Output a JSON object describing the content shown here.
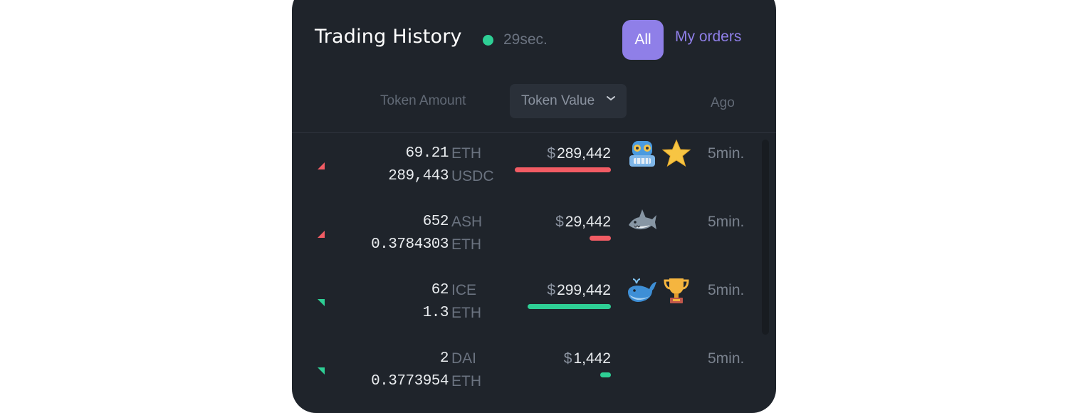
{
  "header": {
    "title": "Trading History",
    "updated": "29sec.",
    "live_color": "#2ecf95",
    "tabs": [
      {
        "label": "All",
        "active": true
      },
      {
        "label": "My orders",
        "active": false
      }
    ]
  },
  "columns": {
    "amount": "Token Amount",
    "value": "Token Value",
    "ago": "Ago"
  },
  "colors": {
    "sell": "#f25c64",
    "buy": "#2ecf95",
    "accent": "#8f7fe8"
  },
  "trades": [
    {
      "side": "sell",
      "amount1": "69.21",
      "sym1": "ETH",
      "amount2": "289,443",
      "sym2": "USDC",
      "currency": "$",
      "value": "289,442",
      "bar_fraction": 0.45,
      "badges": [
        "robot-icon",
        "star-icon"
      ],
      "ago": "5min."
    },
    {
      "side": "sell",
      "amount1": "652",
      "sym1": "ASH",
      "amount2": "0.3784303",
      "sym2": "ETH",
      "currency": "$",
      "value": "29,442",
      "bar_fraction": 0.1,
      "badges": [
        "shark-icon"
      ],
      "ago": "5min."
    },
    {
      "side": "buy",
      "amount1": "62",
      "sym1": "ICE",
      "amount2": "1.3",
      "sym2": "ETH",
      "currency": "$",
      "value": "299,442",
      "bar_fraction": 0.39,
      "badges": [
        "whale-icon",
        "trophy-icon"
      ],
      "ago": "5min."
    },
    {
      "side": "buy",
      "amount1": "2",
      "sym1": "DAI",
      "amount2": "0.3773954",
      "sym2": "ETH",
      "currency": "$",
      "value": "1,442",
      "bar_fraction": 0.05,
      "badges": [],
      "ago": "5min."
    }
  ]
}
